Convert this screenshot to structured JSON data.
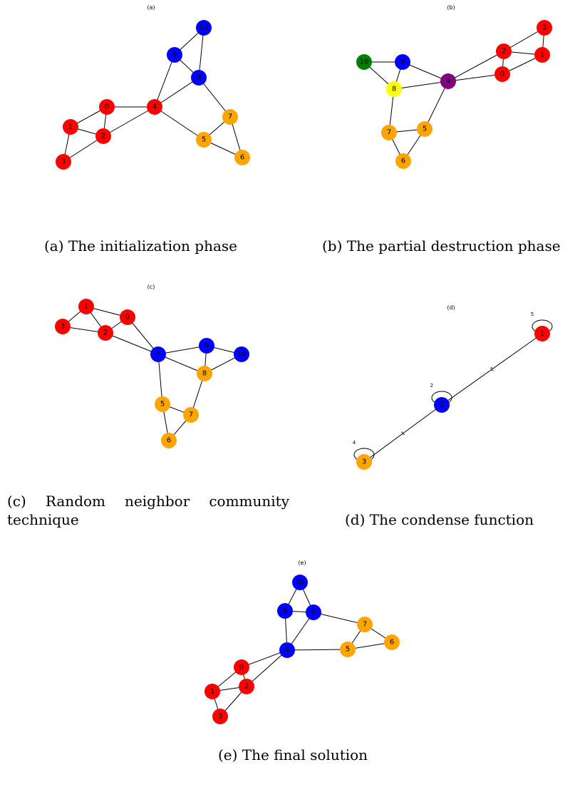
{
  "colors": {
    "red": "#ff0000",
    "blue": "#0000ff",
    "orange": "#ffa500",
    "green": "#008000",
    "yellow": "#ffff00",
    "purple": "#800080",
    "edge": "#000000"
  },
  "panels": [
    {
      "id": "a",
      "tag": "(a)",
      "caption": "(a) The initialization phase",
      "nodes": [
        {
          "label": "0",
          "color": "red"
        },
        {
          "label": "1",
          "color": "red"
        },
        {
          "label": "2",
          "color": "red"
        },
        {
          "label": "3",
          "color": "red"
        },
        {
          "label": "4",
          "color": "red"
        },
        {
          "label": "5",
          "color": "orange"
        },
        {
          "label": "6",
          "color": "orange"
        },
        {
          "label": "7",
          "color": "orange"
        },
        {
          "label": "8",
          "color": "blue"
        },
        {
          "label": "9",
          "color": "blue"
        },
        {
          "label": "10",
          "color": "blue"
        }
      ],
      "edges": [
        [
          "0",
          "1"
        ],
        [
          "0",
          "2"
        ],
        [
          "0",
          "4"
        ],
        [
          "1",
          "2"
        ],
        [
          "1",
          "3"
        ],
        [
          "2",
          "3"
        ],
        [
          "2",
          "4"
        ],
        [
          "4",
          "9"
        ],
        [
          "4",
          "8"
        ],
        [
          "4",
          "5"
        ],
        [
          "9",
          "10"
        ],
        [
          "9",
          "8"
        ],
        [
          "10",
          "8"
        ],
        [
          "8",
          "7"
        ],
        [
          "7",
          "5"
        ],
        [
          "7",
          "6"
        ],
        [
          "5",
          "6"
        ]
      ]
    },
    {
      "id": "b",
      "tag": "(b)",
      "caption": "(b) The partial destruction phase",
      "nodes": [
        {
          "label": "0",
          "color": "red"
        },
        {
          "label": "1",
          "color": "red"
        },
        {
          "label": "2",
          "color": "red"
        },
        {
          "label": "3",
          "color": "red"
        },
        {
          "label": "4",
          "color": "purple"
        },
        {
          "label": "5",
          "color": "orange"
        },
        {
          "label": "6",
          "color": "orange"
        },
        {
          "label": "7",
          "color": "orange"
        },
        {
          "label": "8",
          "color": "yellow"
        },
        {
          "label": "9",
          "color": "blue"
        },
        {
          "label": "10",
          "color": "green"
        }
      ],
      "edges": [
        [
          "10",
          "9"
        ],
        [
          "10",
          "8"
        ],
        [
          "9",
          "8"
        ],
        [
          "9",
          "4"
        ],
        [
          "8",
          "4"
        ],
        [
          "8",
          "7"
        ],
        [
          "7",
          "5"
        ],
        [
          "7",
          "6"
        ],
        [
          "5",
          "6"
        ],
        [
          "5",
          "4"
        ],
        [
          "4",
          "2"
        ],
        [
          "4",
          "0"
        ],
        [
          "2",
          "0"
        ],
        [
          "2",
          "3"
        ],
        [
          "2",
          "1"
        ],
        [
          "3",
          "1"
        ],
        [
          "0",
          "1"
        ]
      ]
    },
    {
      "id": "c",
      "tag": "(c)",
      "caption": "(c) Random neighbor community technique",
      "nodes": [
        {
          "label": "0",
          "color": "red"
        },
        {
          "label": "1",
          "color": "red"
        },
        {
          "label": "2",
          "color": "red"
        },
        {
          "label": "3",
          "color": "red"
        },
        {
          "label": "4",
          "color": "blue"
        },
        {
          "label": "5",
          "color": "orange"
        },
        {
          "label": "6",
          "color": "orange"
        },
        {
          "label": "7",
          "color": "orange"
        },
        {
          "label": "8",
          "color": "orange"
        },
        {
          "label": "9",
          "color": "blue"
        },
        {
          "label": "10",
          "color": "blue"
        }
      ],
      "edges": [
        [
          "1",
          "3"
        ],
        [
          "1",
          "2"
        ],
        [
          "1",
          "0"
        ],
        [
          "3",
          "2"
        ],
        [
          "2",
          "0"
        ],
        [
          "2",
          "4"
        ],
        [
          "0",
          "4"
        ],
        [
          "4",
          "9"
        ],
        [
          "4",
          "8"
        ],
        [
          "4",
          "5"
        ],
        [
          "9",
          "8"
        ],
        [
          "9",
          "10"
        ],
        [
          "8",
          "10"
        ],
        [
          "8",
          "7"
        ],
        [
          "5",
          "7"
        ],
        [
          "5",
          "6"
        ],
        [
          "7",
          "6"
        ]
      ]
    },
    {
      "id": "d",
      "tag": "(d)",
      "caption": "(d) The condense function",
      "nodes": [
        {
          "label": "1",
          "color": "red",
          "loop": "5"
        },
        {
          "label": "2",
          "color": "blue",
          "loop": "2"
        },
        {
          "label": "3",
          "color": "orange",
          "loop": "4"
        }
      ],
      "edges": [
        [
          "1",
          "2",
          "2"
        ],
        [
          "2",
          "3",
          "1"
        ]
      ]
    },
    {
      "id": "e",
      "tag": "(e)",
      "caption": "(e) The final solution",
      "nodes": [
        {
          "label": "0",
          "color": "red"
        },
        {
          "label": "1",
          "color": "red"
        },
        {
          "label": "2",
          "color": "red"
        },
        {
          "label": "3",
          "color": "red"
        },
        {
          "label": "4",
          "color": "blue"
        },
        {
          "label": "5",
          "color": "orange"
        },
        {
          "label": "6",
          "color": "orange"
        },
        {
          "label": "7",
          "color": "orange"
        },
        {
          "label": "8",
          "color": "blue"
        },
        {
          "label": "9",
          "color": "blue"
        },
        {
          "label": "10",
          "color": "blue"
        }
      ],
      "edges": [
        [
          "10",
          "9"
        ],
        [
          "10",
          "8"
        ],
        [
          "9",
          "8"
        ],
        [
          "9",
          "4"
        ],
        [
          "8",
          "4"
        ],
        [
          "8",
          "7"
        ],
        [
          "7",
          "5"
        ],
        [
          "7",
          "6"
        ],
        [
          "5",
          "6"
        ],
        [
          "4",
          "5"
        ],
        [
          "4",
          "0"
        ],
        [
          "4",
          "2"
        ],
        [
          "0",
          "1"
        ],
        [
          "0",
          "2"
        ],
        [
          "1",
          "2"
        ],
        [
          "1",
          "3"
        ],
        [
          "2",
          "3"
        ]
      ]
    }
  ]
}
